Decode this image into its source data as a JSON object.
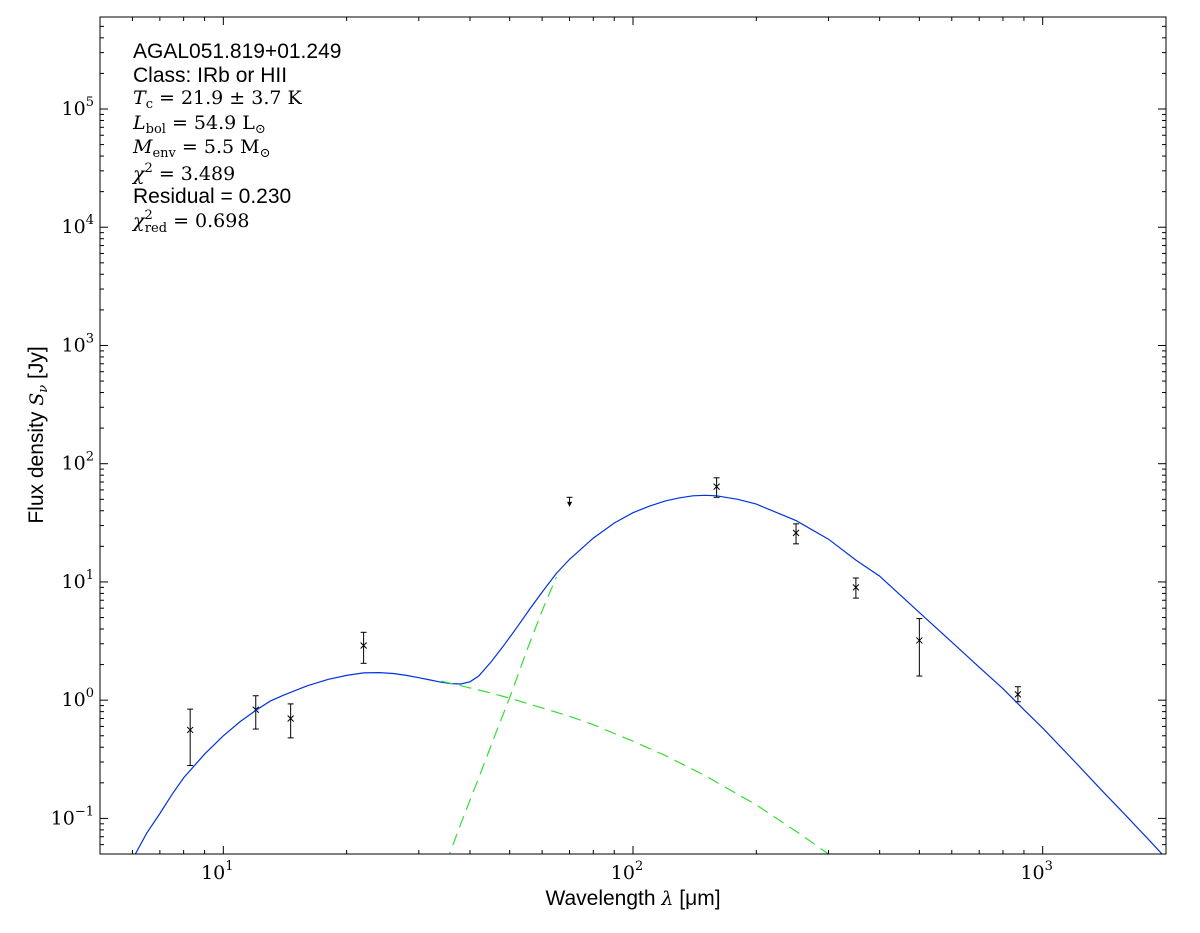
{
  "chart_data": {
    "type": "scatter",
    "xlabel_prefix": "Wavelength ",
    "xlabel_symbol": "λ",
    "xlabel_unit": " [μm]",
    "ylabel_prefix": "Flux density ",
    "ylabel_symbol": "S",
    "ylabel_sub": "ν",
    "ylabel_unit": " [Jy]",
    "xscale": "log",
    "yscale": "log",
    "xlim": [
      5,
      2000
    ],
    "ylim": [
      0.05,
      600000
    ],
    "x_ticks": [
      {
        "base": "10",
        "exp": "1",
        "value": 10
      },
      {
        "base": "10",
        "exp": "2",
        "value": 100
      },
      {
        "base": "10",
        "exp": "3",
        "value": 1000
      }
    ],
    "y_ticks": [
      {
        "base": "10",
        "exp": "−1",
        "value": 0.1
      },
      {
        "base": "10",
        "exp": "0",
        "value": 1
      },
      {
        "base": "10",
        "exp": "1",
        "value": 10
      },
      {
        "base": "10",
        "exp": "2",
        "value": 100
      },
      {
        "base": "10",
        "exp": "3",
        "value": 1000
      },
      {
        "base": "10",
        "exp": "4",
        "value": 10000
      },
      {
        "base": "10",
        "exp": "5",
        "value": 100000
      }
    ],
    "grid": false,
    "annotation": {
      "source": "AGAL051.819+01.249",
      "class_line": "Class: IRb or HII",
      "tc": {
        "symbol": "T",
        "sub": "c",
        "rest": " = 21.9 ± 3.7 K"
      },
      "lbol": {
        "symbol": "L",
        "sub": "bol",
        "rest": " = 54.9 L",
        "tail": "⊙"
      },
      "menv": {
        "symbol": "M",
        "sub": "env",
        "rest": " = 5.5 M",
        "tail": "⊙"
      },
      "chi2": {
        "symbol": "χ",
        "sup": "2",
        "rest": " = 3.489"
      },
      "residual": "Residual = 0.230",
      "chi2red": {
        "symbol": "χ",
        "sup": "2",
        "sub": "red",
        "rest": " = 0.698"
      }
    },
    "series": [
      {
        "kind": "observed",
        "color": "#000000",
        "points": [
          {
            "x": 8.3,
            "y": 0.56,
            "ylo": 0.28,
            "yhi": 0.84
          },
          {
            "x": 12.0,
            "y": 0.83,
            "ylo": 0.57,
            "yhi": 1.09
          },
          {
            "x": 14.6,
            "y": 0.7,
            "ylo": 0.48,
            "yhi": 0.93
          },
          {
            "x": 22.0,
            "y": 2.9,
            "ylo": 2.05,
            "yhi": 3.75
          },
          {
            "x": 160,
            "y": 64,
            "ylo": 52,
            "yhi": 76
          },
          {
            "x": 250,
            "y": 26,
            "ylo": 21,
            "yhi": 31
          },
          {
            "x": 350,
            "y": 9.0,
            "ylo": 7.3,
            "yhi": 10.8
          },
          {
            "x": 500,
            "y": 3.2,
            "ylo": 1.6,
            "yhi": 4.9
          },
          {
            "x": 870,
            "y": 1.12,
            "ylo": 0.97,
            "yhi": 1.3
          }
        ]
      },
      {
        "kind": "upper_limit",
        "color": "#000000",
        "points": [
          {
            "x": 70,
            "y": 52,
            "y_end": 44
          }
        ]
      },
      {
        "kind": "total_fit",
        "color": "#0033dd",
        "x": [
          6,
          6.5,
          7,
          7.5,
          8,
          9,
          10,
          11,
          12,
          13,
          14,
          16,
          18,
          20,
          22,
          24,
          26,
          28,
          30,
          32,
          34,
          36,
          38,
          40,
          42,
          45,
          48,
          52,
          56,
          60,
          65,
          70,
          80,
          90,
          100,
          110,
          120,
          130,
          140,
          150,
          160,
          180,
          200,
          250,
          300,
          350,
          400,
          500,
          600,
          700,
          800,
          900,
          1000,
          1200,
          1400,
          1600,
          1800,
          2000
        ],
        "y": [
          0.045,
          0.075,
          0.11,
          0.16,
          0.22,
          0.35,
          0.5,
          0.66,
          0.82,
          0.98,
          1.1,
          1.32,
          1.5,
          1.62,
          1.7,
          1.71,
          1.68,
          1.62,
          1.55,
          1.48,
          1.42,
          1.38,
          1.37,
          1.43,
          1.6,
          2.1,
          2.8,
          4.1,
          5.9,
          8.2,
          11.8,
          15.5,
          23.5,
          31.5,
          38.5,
          44,
          48.5,
          51.5,
          53.5,
          54,
          53.5,
          50,
          45.5,
          33,
          23,
          15.3,
          11.2,
          5.5,
          3.1,
          1.9,
          1.25,
          0.83,
          0.58,
          0.3,
          0.17,
          0.105,
          0.068,
          0.046
        ]
      },
      {
        "kind": "warm_component",
        "color": "#33dd33",
        "dashed": true,
        "x": [
          34,
          40,
          45,
          50,
          60,
          70,
          80,
          100,
          120,
          150,
          200,
          250,
          300
        ],
        "y": [
          1.45,
          1.27,
          1.15,
          1.04,
          0.86,
          0.73,
          0.62,
          0.45,
          0.34,
          0.23,
          0.13,
          0.078,
          0.05
        ]
      },
      {
        "kind": "cold_component",
        "color": "#33dd33",
        "dashed": true,
        "x": [
          35,
          38,
          42,
          46,
          50,
          55,
          60,
          65
        ],
        "y": [
          0.042,
          0.09,
          0.22,
          0.5,
          1.05,
          2.6,
          5.7,
          11
        ]
      }
    ]
  }
}
